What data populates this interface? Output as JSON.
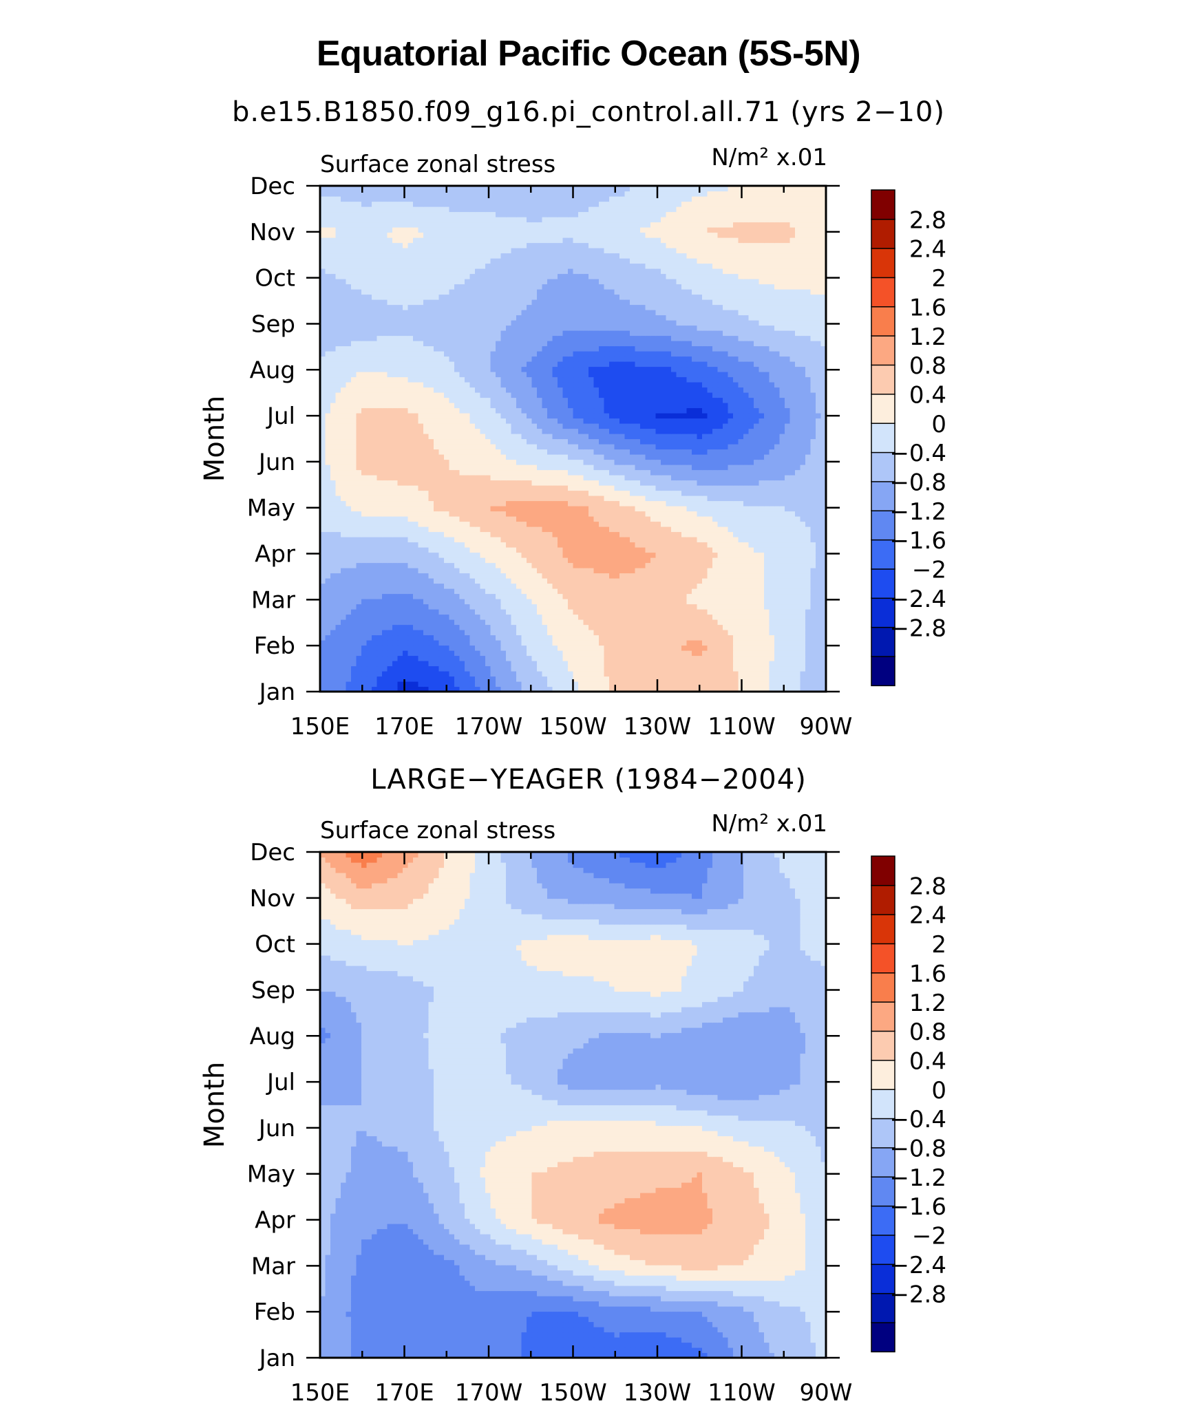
{
  "figure": {
    "title": "Equatorial Pacific Ocean (5S-5N)",
    "colors": [
      "#000080",
      "#0018b0",
      "#0a2ed8",
      "#1e4cf0",
      "#3c6cf5",
      "#6088f2",
      "#86a6f4",
      "#aec6f8",
      "#d2e4fb",
      "#fdeedd",
      "#fccbb0",
      "#fca882",
      "#f97e4c",
      "#f45228",
      "#d93508",
      "#b01c00",
      "#800000"
    ],
    "colorbar_labels": [
      "2.8",
      "2.4",
      "2",
      "1.6",
      "1.2",
      "0.8",
      "0.4",
      "0",
      "−0.4",
      "−0.8",
      "−1.2",
      "−1.6",
      "−2",
      "−2.4",
      "−2.8"
    ],
    "contour_levels": [
      -2.8,
      -2.4,
      -2,
      -1.6,
      -1.2,
      -0.8,
      -0.4,
      0,
      0.4,
      0.8,
      1.2,
      1.6,
      2,
      2.4,
      2.8
    ]
  },
  "chart_data": [
    {
      "type": "heatmap",
      "title": "b.e15.B1850.f09_g16.pi_control.all.71 (yrs 2−10)",
      "left_label": "Surface zonal stress",
      "units_label": "N/m² x.01",
      "ylabel": "Month",
      "x_tick_labels": [
        "150E",
        "170E",
        "170W",
        "150W",
        "130W",
        "110W",
        "90W"
      ],
      "y_tick_labels": [
        "Jan",
        "Feb",
        "Mar",
        "Apr",
        "May",
        "Jun",
        "Jul",
        "Aug",
        "Sep",
        "Oct",
        "Nov",
        "Dec"
      ],
      "x_lon": [
        150,
        160,
        170,
        180,
        190,
        200,
        210,
        220,
        230,
        240,
        250,
        260,
        270
      ],
      "rows": [
        [
          -0.9,
          -1.4,
          -2.2,
          -1.9,
          -1.0,
          -0.3,
          0.3,
          0.9,
          1.0,
          0.9,
          0.8,
          0.2,
          -0.3
        ],
        [
          -0.8,
          -1.2,
          -1.5,
          -1.2,
          -0.6,
          0.1,
          0.6,
          0.9,
          1.1,
          1.3,
          0.7,
          0.3,
          -0.3
        ],
        [
          -0.5,
          -0.8,
          -0.9,
          -0.6,
          -0.1,
          0.4,
          0.9,
          1.0,
          1.0,
          0.7,
          0.5,
          0.3,
          -0.2
        ],
        [
          -0.2,
          -0.3,
          -0.3,
          0.1,
          0.5,
          0.9,
          1.3,
          1.4,
          1.2,
          1.0,
          0.5,
          0.3,
          -0.1
        ],
        [
          0.2,
          0.5,
          0.6,
          0.9,
          1.2,
          1.4,
          1.3,
          1.0,
          0.6,
          0.3,
          0.1,
          0.0,
          -0.1
        ],
        [
          0.3,
          0.9,
          1.0,
          0.8,
          0.6,
          0.3,
          0.1,
          -0.4,
          -0.8,
          -1.0,
          -0.9,
          -0.6,
          -0.2
        ],
        [
          0.3,
          0.9,
          0.9,
          0.6,
          0.2,
          -0.5,
          -1.2,
          -1.7,
          -2.0,
          -2.1,
          -1.5,
          -0.9,
          -0.3
        ],
        [
          0.1,
          0.4,
          0.3,
          0.1,
          -0.4,
          -0.9,
          -1.5,
          -1.8,
          -1.7,
          -1.4,
          -1.0,
          -0.6,
          -0.2
        ],
        [
          -0.3,
          -0.2,
          -0.1,
          -0.2,
          -0.3,
          -0.5,
          -0.7,
          -0.6,
          -0.5,
          -0.3,
          -0.1,
          0.1,
          0.2
        ],
        [
          -0.1,
          0.1,
          0.2,
          0.1,
          -0.1,
          -0.3,
          -0.5,
          -0.3,
          -0.1,
          0.2,
          0.4,
          0.5,
          0.5
        ],
        [
          0.5,
          0.3,
          0.5,
          0.3,
          0.2,
          0.1,
          0.1,
          0.3,
          0.5,
          0.8,
          0.9,
          0.9,
          0.6
        ],
        [
          -0.1,
          -0.2,
          -0.3,
          -0.3,
          -0.3,
          -0.3,
          -0.2,
          -0.1,
          0.1,
          0.3,
          0.4,
          0.5,
          0.4
        ]
      ]
    },
    {
      "type": "heatmap",
      "title": "LARGE−YEAGER (1984−2004)",
      "left_label": "Surface zonal stress",
      "units_label": "N/m² x.01",
      "ylabel": "Month",
      "x_tick_labels": [
        "150E",
        "170E",
        "170W",
        "150W",
        "130W",
        "110W",
        "90W"
      ],
      "y_tick_labels": [
        "Jan",
        "Feb",
        "Mar",
        "Apr",
        "May",
        "Jun",
        "Jul",
        "Aug",
        "Sep",
        "Oct",
        "Nov",
        "Dec"
      ],
      "x_lon": [
        150,
        160,
        170,
        180,
        190,
        200,
        210,
        220,
        230,
        240,
        250,
        260,
        270
      ],
      "rows": [
        [
          -0.5,
          -0.9,
          -0.9,
          -0.8,
          -0.9,
          -1.3,
          -1.6,
          -1.4,
          -1.6,
          -1.3,
          -0.7,
          -0.3,
          0.1
        ],
        [
          -0.4,
          -1.0,
          -1.2,
          -1.0,
          -1.0,
          -1.2,
          -1.2,
          -1.0,
          -0.9,
          -0.8,
          -0.5,
          -0.1,
          0.1
        ],
        [
          -0.3,
          -0.9,
          -1.1,
          -0.9,
          -0.5,
          -0.3,
          0.2,
          0.6,
          0.8,
          0.9,
          0.8,
          0.6,
          0.2
        ],
        [
          -0.3,
          -0.7,
          -0.8,
          -0.3,
          0.3,
          0.8,
          1.1,
          1.3,
          1.4,
          1.3,
          1.0,
          0.7,
          0.1
        ],
        [
          -0.2,
          -0.5,
          -0.5,
          -0.1,
          0.5,
          0.8,
          0.9,
          1.0,
          1.1,
          1.2,
          0.9,
          0.5,
          0.0
        ],
        [
          -0.3,
          -0.4,
          -0.3,
          0.1,
          0.3,
          0.4,
          0.6,
          0.6,
          0.5,
          0.4,
          0.2,
          0.1,
          -0.1
        ],
        [
          -0.5,
          -0.4,
          -0.2,
          0.1,
          0.1,
          -0.1,
          -0.6,
          -0.6,
          -0.5,
          -0.7,
          -0.8,
          -0.5,
          -0.2
        ],
        [
          -0.9,
          -0.4,
          -0.1,
          0.1,
          0.1,
          -0.2,
          -0.3,
          -0.5,
          -0.4,
          -0.6,
          -0.8,
          -0.6,
          -0.2
        ],
        [
          -0.4,
          -0.3,
          -0.2,
          0.1,
          0.2,
          0.3,
          0.3,
          0.4,
          0.5,
          0.3,
          0.0,
          -0.3,
          -0.2
        ],
        [
          0.1,
          0.3,
          0.4,
          0.3,
          0.2,
          0.5,
          0.6,
          0.5,
          0.6,
          0.4,
          0.2,
          -0.1,
          0.2
        ],
        [
          0.6,
          1.0,
          0.9,
          0.6,
          0.2,
          -0.3,
          -0.5,
          -0.6,
          -0.7,
          -0.8,
          -0.4,
          -0.1,
          0.2
        ],
        [
          1.2,
          1.9,
          1.4,
          0.8,
          0.2,
          -0.4,
          -0.9,
          -1.2,
          -1.5,
          -1.0,
          -0.4,
          0.1,
          0.3
        ]
      ]
    }
  ]
}
